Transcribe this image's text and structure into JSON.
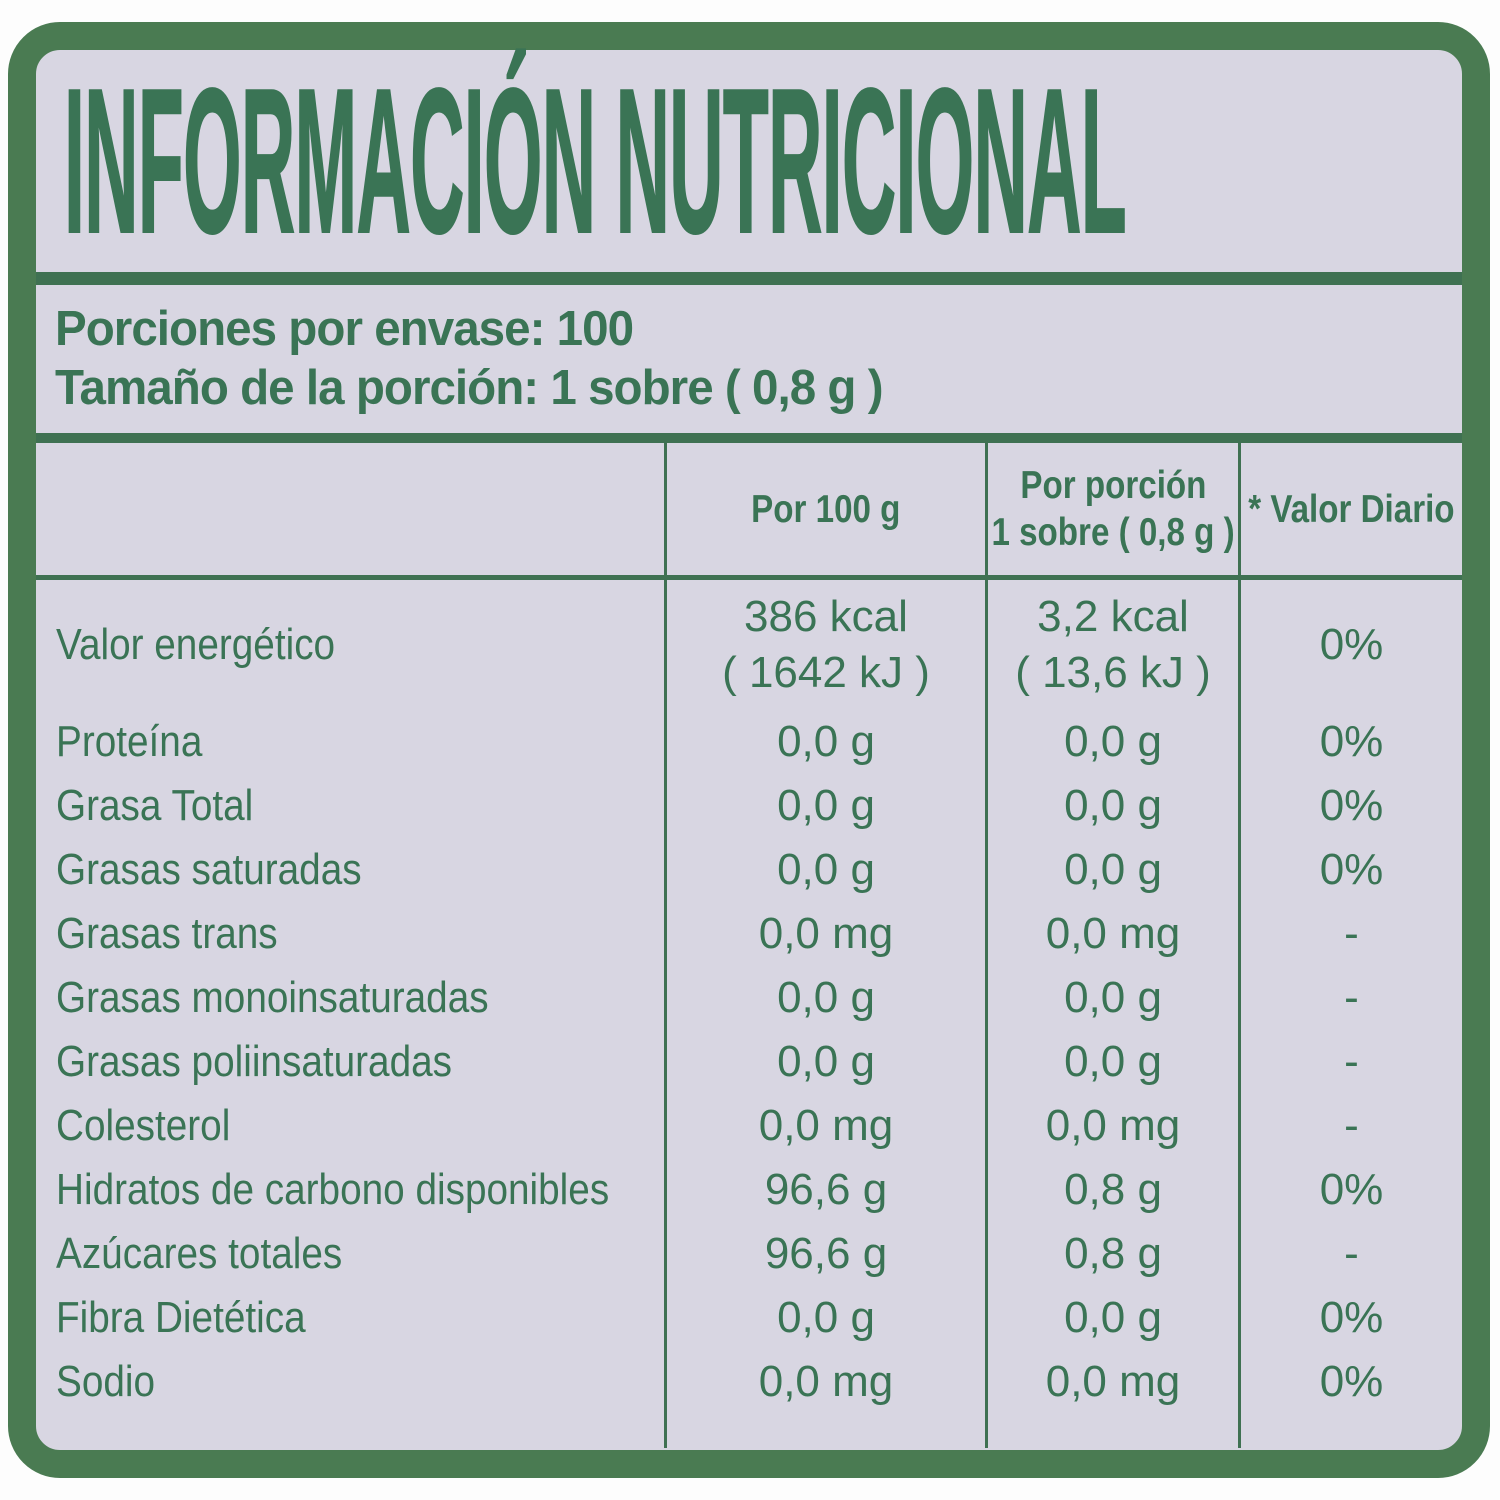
{
  "colors": {
    "green_text": "#3a7455",
    "green_lines": "#3f7152",
    "green_border": "#4a7b52",
    "panel_background": "#d8d6e2",
    "page_background": "#fdfdfd"
  },
  "label": {
    "title": "INFORMACIÓN NUTRICIONAL",
    "servings_line": "Porciones por envase: 100",
    "serving_size_line": "Tamaño de la porción: 1 sobre ( 0,8 g )"
  },
  "table": {
    "headers": {
      "nutrient": "",
      "per100": "Por 100 g",
      "portion_line1": "Por porción",
      "portion_line2": "1 sobre ( 0,8 g )",
      "daily": "* Valor Diario"
    },
    "rows": [
      {
        "name": "Valor energético",
        "per100": "386 kcal",
        "per100_sub": "( 1642 kJ )",
        "portion": "3,2 kcal",
        "portion_sub": "( 13,6 kJ )",
        "daily": "0%"
      },
      {
        "name": "Proteína",
        "per100": "0,0 g",
        "portion": "0,0 g",
        "daily": "0%"
      },
      {
        "name": "Grasa Total",
        "per100": "0,0 g",
        "portion": "0,0 g",
        "daily": "0%"
      },
      {
        "name": "Grasas saturadas",
        "per100": "0,0 g",
        "portion": "0,0 g",
        "daily": "0%"
      },
      {
        "name": "Grasas trans",
        "per100": "0,0 mg",
        "portion": "0,0 mg",
        "daily": "-"
      },
      {
        "name": "Grasas monoinsaturadas",
        "per100": "0,0 g",
        "portion": "0,0 g",
        "daily": "-"
      },
      {
        "name": "Grasas poliinsaturadas",
        "per100": "0,0 g",
        "portion": "0,0 g",
        "daily": "-"
      },
      {
        "name": "Colesterol",
        "per100": "0,0 mg",
        "portion": "0,0 mg",
        "daily": "-"
      },
      {
        "name": "Hidratos de carbono disponibles",
        "per100": "96,6 g",
        "portion": "0,8 g",
        "daily": "0%"
      },
      {
        "name": "Azúcares totales",
        "per100": "96,6 g",
        "portion": "0,8 g",
        "daily": "-"
      },
      {
        "name": "Fibra Dietética",
        "per100": "0,0 g",
        "portion": "0,0 g",
        "daily": "0%"
      },
      {
        "name": "Sodio",
        "per100": "0,0 mg",
        "portion": "0,0 mg",
        "daily": "0%"
      }
    ]
  }
}
